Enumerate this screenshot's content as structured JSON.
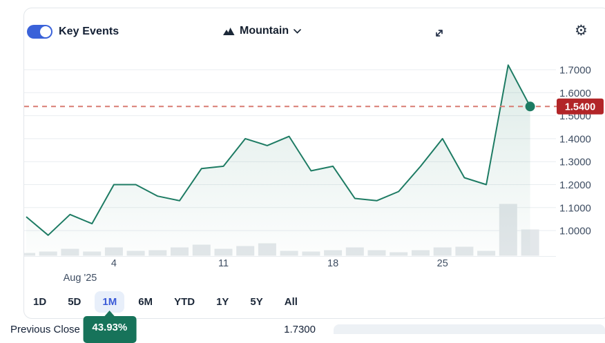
{
  "header": {
    "key_events_label": "Key Events",
    "key_events_on": true,
    "chart_type_label": "Mountain"
  },
  "colors": {
    "accent_blue": "#3a62d9",
    "active_range_bg": "#e8effa",
    "active_range_text": "#3b5bd7",
    "line": "#1d7b63",
    "fill_top": "rgba(30,122,97,0.15)",
    "fill_bottom": "rgba(30,122,97,0.01)",
    "dashed": "#d87b72",
    "badge": "#b22528",
    "gridline": "#e9edf0",
    "volume_bar": "#e3e7ea",
    "axis_text": "#3f4e63",
    "tooltip_green": "#17735a"
  },
  "chart_data": {
    "type": "area",
    "x": [
      "Jul 29",
      "Jul 30",
      "Jul 31",
      "Aug 1",
      "Aug 4",
      "Aug 5",
      "Aug 6",
      "Aug 7",
      "Aug 8",
      "Aug 11",
      "Aug 12",
      "Aug 13",
      "Aug 14",
      "Aug 15",
      "Aug 18",
      "Aug 19",
      "Aug 20",
      "Aug 21",
      "Aug 22",
      "Aug 25",
      "Aug 26",
      "Aug 27",
      "Aug 28",
      "Aug 29"
    ],
    "series": [
      {
        "name": "Price",
        "values": [
          1.06,
          0.98,
          1.07,
          1.03,
          1.2,
          1.2,
          1.15,
          1.13,
          1.27,
          1.28,
          1.4,
          1.37,
          1.41,
          1.26,
          1.28,
          1.14,
          1.13,
          1.17,
          1.28,
          1.4,
          1.23,
          1.2,
          1.72,
          1.54
        ]
      }
    ],
    "volume_relative": [
      4,
      6,
      10,
      6,
      12,
      7,
      8,
      12,
      16,
      10,
      14,
      18,
      7,
      6,
      8,
      12,
      8,
      5,
      8,
      12,
      13,
      7,
      75,
      38
    ],
    "y_ticks": [
      {
        "value": 1.7,
        "label": "1.7000"
      },
      {
        "value": 1.6,
        "label": "1.6000"
      },
      {
        "value": 1.5,
        "label": "1.5000"
      },
      {
        "value": 1.4,
        "label": "1.4000"
      },
      {
        "value": 1.3,
        "label": "1.3000"
      },
      {
        "value": 1.2,
        "label": "1.2000"
      },
      {
        "value": 1.1,
        "label": "1.1000"
      },
      {
        "value": 1.0,
        "label": "1.0000"
      }
    ],
    "ylim": [
      0.95,
      1.78
    ],
    "x_ticks": [
      {
        "index": 4,
        "label": "4"
      },
      {
        "index": 9,
        "label": "11"
      },
      {
        "index": 14,
        "label": "18"
      },
      {
        "index": 19,
        "label": "25"
      }
    ],
    "x_period_label": "Aug '25",
    "grid": "horizontal",
    "legend": "none",
    "last_price": {
      "value": 1.54,
      "label": "1.5400"
    }
  },
  "range_selector": {
    "options": [
      "1D",
      "5D",
      "1M",
      "6M",
      "YTD",
      "1Y",
      "5Y",
      "All"
    ],
    "active": "1M"
  },
  "tooltip": {
    "change_percent": "43.93%"
  },
  "stats": {
    "label": "Previous Close",
    "value": "1.7300"
  }
}
